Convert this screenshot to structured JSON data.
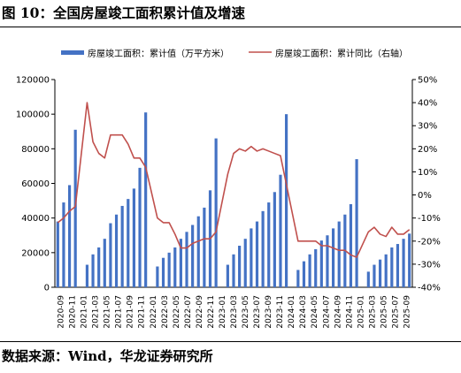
{
  "figure": {
    "title": "图 10：全国房屋竣工面积累计值及增速",
    "source": "数据来源：Wind，华龙证券研究所"
  },
  "colors": {
    "bar": "#4472C4",
    "line": "#C0504D",
    "axis": "#000000"
  },
  "chart_data": {
    "type": "bar+line",
    "title": "",
    "xlabel": "",
    "ylabel": "",
    "ylim": [
      0,
      120000
    ],
    "y2lim": [
      -40,
      50
    ],
    "yticks": [
      "0",
      "20000",
      "40000",
      "60000",
      "80000",
      "100000",
      "120000"
    ],
    "y2ticks": [
      "-40%",
      "-30%",
      "-20%",
      "-10%",
      "0%",
      "10%",
      "20%",
      "30%",
      "40%",
      "50%"
    ],
    "tick_labels": [
      "2020-09",
      "2020-11",
      "2021-01",
      "2021-03",
      "2021-05",
      "2021-07",
      "2021-09",
      "2021-11",
      "2022-01",
      "2022-03",
      "2022-05",
      "2022-07",
      "2022-09",
      "2022-11",
      "2023-01",
      "2023-03",
      "2023-05",
      "2023-07",
      "2023-09",
      "2023-11",
      "2024-01",
      "2024-03",
      "2024-05",
      "2024-07",
      "2024-09",
      "2024-11",
      "2025-01",
      "2025-03",
      "2025-05",
      "2025-07",
      "2025-09"
    ],
    "legend_position": "top",
    "series": [
      {
        "name": "房屋竣工面积：累计值（万平方米）",
        "type": "bar",
        "axis": "left",
        "values": [
          38000,
          49000,
          59000,
          91000,
          null,
          13000,
          19000,
          23000,
          28000,
          37000,
          42000,
          47000,
          51000,
          57000,
          69000,
          101000,
          null,
          12000,
          17000,
          20000,
          23000,
          28000,
          32000,
          36000,
          41000,
          46000,
          56000,
          86000,
          null,
          13000,
          19000,
          24000,
          28000,
          34000,
          38000,
          44000,
          49000,
          55000,
          65000,
          100000,
          null,
          10000,
          15000,
          19000,
          22000,
          27000,
          30000,
          34000,
          38000,
          42000,
          48000,
          74000,
          null,
          9000,
          13000,
          16000,
          19000,
          23000,
          25000,
          28000,
          31000
        ]
      },
      {
        "name": "房屋竣工面积：累计同比（右轴）",
        "type": "line",
        "axis": "right",
        "values": [
          -12,
          -10,
          -7,
          -5,
          null,
          40,
          23,
          18,
          16,
          26,
          26,
          26,
          22,
          16,
          16,
          12,
          null,
          -10,
          -12,
          -12,
          -17,
          -23,
          -23,
          -21,
          -20,
          -19,
          -19,
          -16,
          null,
          9,
          18,
          20,
          19,
          21,
          19,
          20,
          19,
          18,
          17,
          null,
          null,
          -20,
          -20,
          -20,
          -20,
          -22,
          -22,
          -23,
          -24,
          -24,
          -26,
          -27,
          null,
          -16,
          -14,
          -17,
          -18,
          -14,
          -17,
          -17,
          -15
        ]
      }
    ]
  }
}
